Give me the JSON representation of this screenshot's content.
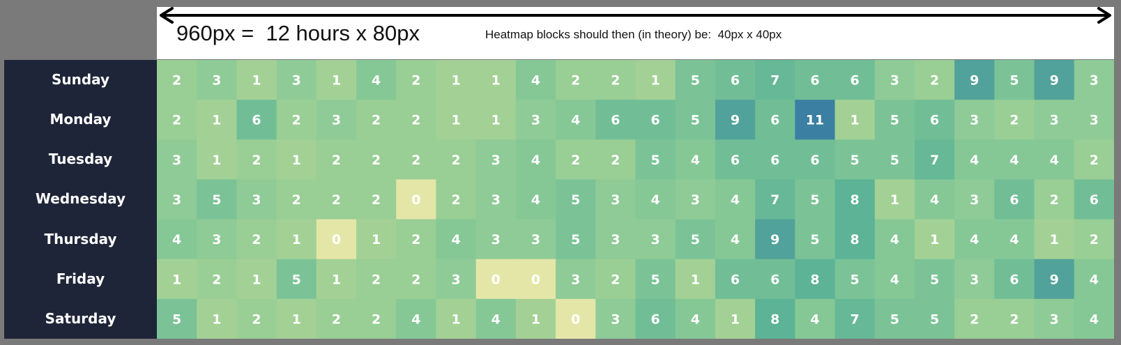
{
  "annotation": {
    "formula": "960px =  12 hours x 80px",
    "note": "Heatmap blocks should then (in theory) be:  40px x 40px"
  },
  "chart_data": {
    "type": "heatmap",
    "title": "",
    "xlabel": "",
    "ylabel": "",
    "y_categories": [
      "Sunday",
      "Monday",
      "Tuesday",
      "Wednesday",
      "Thursday",
      "Friday",
      "Saturday"
    ],
    "values": [
      [
        2,
        3,
        1,
        3,
        1,
        4,
        2,
        1,
        1,
        4,
        2,
        2,
        1,
        5,
        6,
        7,
        6,
        6,
        3,
        2,
        9,
        5,
        9,
        3
      ],
      [
        2,
        1,
        6,
        2,
        3,
        2,
        2,
        1,
        1,
        3,
        4,
        6,
        6,
        5,
        9,
        6,
        11,
        1,
        5,
        6,
        3,
        2,
        3,
        3
      ],
      [
        3,
        1,
        2,
        1,
        2,
        2,
        2,
        2,
        3,
        4,
        2,
        2,
        5,
        4,
        6,
        6,
        6,
        5,
        5,
        7,
        4,
        4,
        4,
        2
      ],
      [
        3,
        5,
        3,
        2,
        2,
        2,
        0,
        2,
        3,
        4,
        5,
        3,
        4,
        3,
        4,
        7,
        5,
        8,
        1,
        4,
        3,
        6,
        2,
        6
      ],
      [
        4,
        3,
        2,
        1,
        0,
        1,
        2,
        4,
        3,
        3,
        5,
        3,
        3,
        5,
        4,
        9,
        5,
        8,
        4,
        1,
        4,
        4,
        1,
        2
      ],
      [
        1,
        2,
        1,
        5,
        1,
        2,
        2,
        3,
        0,
        0,
        3,
        2,
        5,
        1,
        6,
        6,
        8,
        5,
        4,
        5,
        3,
        6,
        9,
        4
      ],
      [
        5,
        1,
        2,
        1,
        2,
        2,
        4,
        1,
        4,
        1,
        0,
        3,
        6,
        4,
        1,
        8,
        4,
        7,
        5,
        5,
        2,
        2,
        3,
        4
      ]
    ],
    "legend": "none",
    "colors": {
      "zero": "#e4e6a8",
      "low": "#a3d195",
      "mid": "#85c896",
      "high": "#5cb396",
      "peak": "#3b7fa3",
      "day_panel": "#1f2538",
      "cell_text": "#ffffff"
    }
  }
}
